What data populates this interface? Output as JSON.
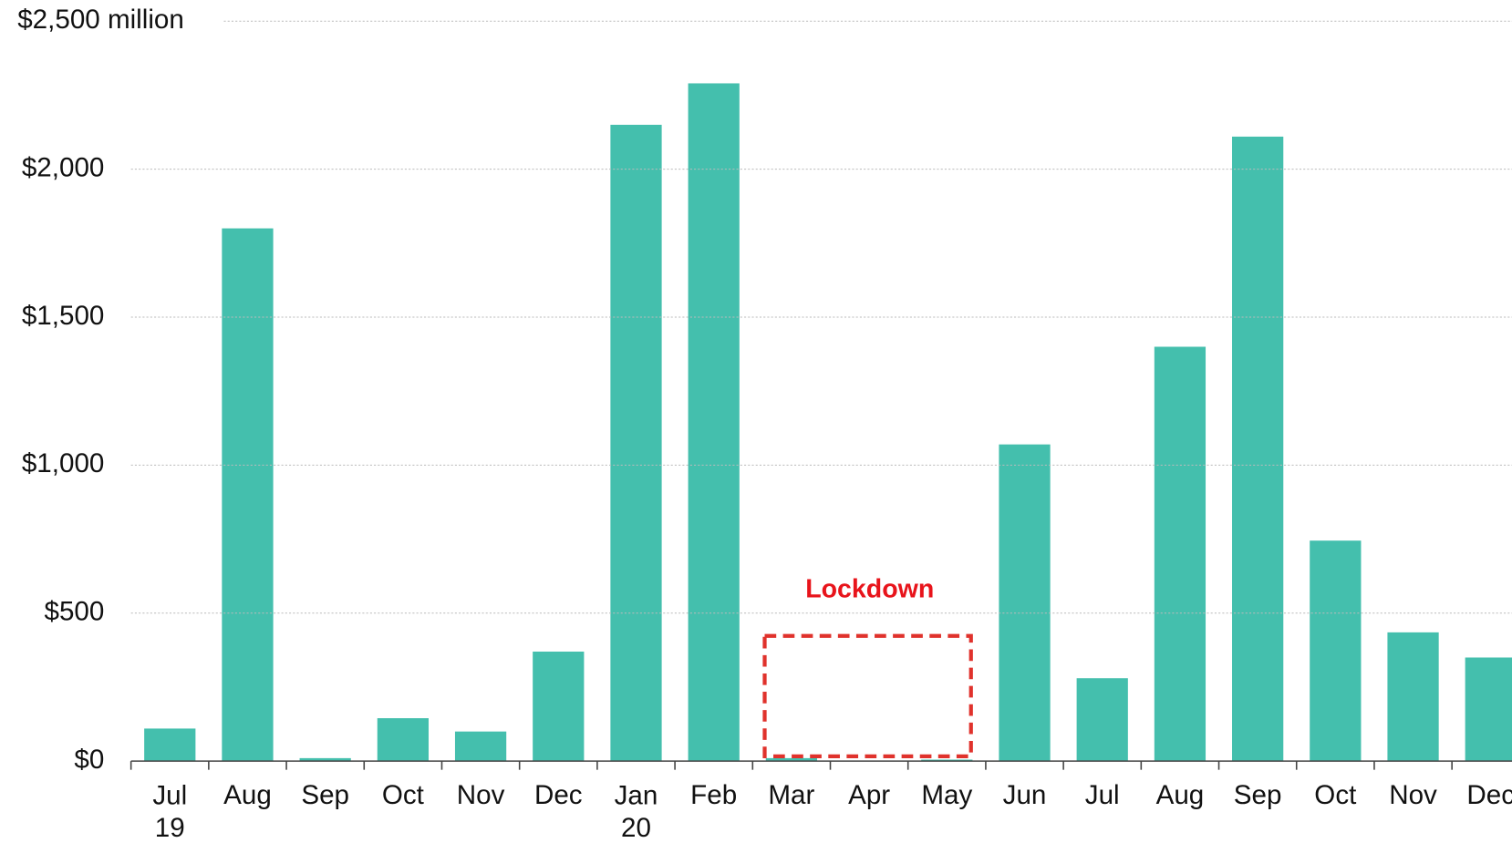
{
  "chart_data": {
    "type": "bar",
    "categories": [
      "Jul 19",
      "Aug",
      "Sep",
      "Oct",
      "Nov",
      "Dec",
      "Jan 20",
      "Feb",
      "Mar",
      "Apr",
      "May",
      "Jun",
      "Jul",
      "Aug",
      "Sep",
      "Oct",
      "Nov",
      "Dec"
    ],
    "values": [
      110,
      1800,
      10,
      145,
      100,
      370,
      2150,
      2290,
      10,
      0,
      5,
      1070,
      280,
      1400,
      2110,
      745,
      435,
      350
    ],
    "color": "#44bfad",
    "ylim": [
      0,
      2500
    ],
    "yticks": [
      {
        "value": 0,
        "label": "$0"
      },
      {
        "value": 500,
        "label": "$500"
      },
      {
        "value": 1000,
        "label": "$1,000"
      },
      {
        "value": 1500,
        "label": "$1,500"
      },
      {
        "value": 2000,
        "label": "$2,000"
      },
      {
        "value": 2500,
        "label": "$2,500 million"
      }
    ],
    "grid": true,
    "annotations": [
      "Lockdown"
    ]
  }
}
